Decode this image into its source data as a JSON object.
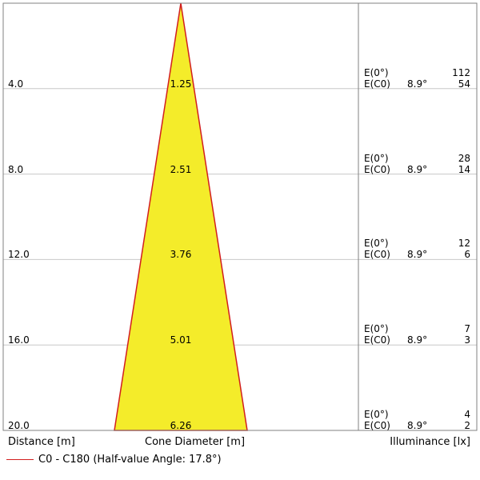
{
  "chart_data": {
    "type": "cone-diagram",
    "title": "",
    "distance_label": "Distance [m]",
    "diameter_label": "Cone Diameter [m]",
    "illuminance_label": "Illuminance [lx]",
    "illuminance_center_label": "E(0°)",
    "illuminance_c0_label": "E(C0)",
    "half_angle_label": "8.9°",
    "legend": "C0 - C180 (Half-value Angle: 17.8°)",
    "colors": {
      "cone_fill": "#f4ec2a",
      "cone_edge": "#d21e1e",
      "grid": "#c8c8c8",
      "frame": "#808080"
    },
    "rows": [
      {
        "distance": "4.0",
        "diameter": "1.25",
        "e_center": "112",
        "e_c0": "54"
      },
      {
        "distance": "8.0",
        "diameter": "2.51",
        "e_center": "28",
        "e_c0": "14"
      },
      {
        "distance": "12.0",
        "diameter": "3.76",
        "e_center": "12",
        "e_c0": "6"
      },
      {
        "distance": "16.0",
        "diameter": "5.01",
        "e_center": "7",
        "e_c0": "3"
      },
      {
        "distance": "20.0",
        "diameter": "6.26",
        "e_center": "4",
        "e_c0": "2"
      }
    ]
  }
}
